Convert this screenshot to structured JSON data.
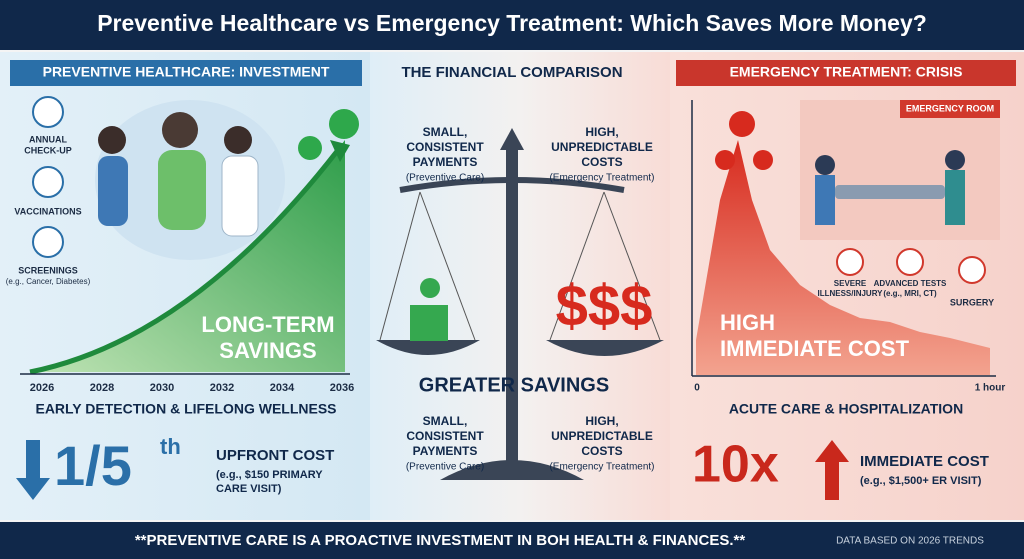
{
  "title": "Preventive Healthcare vs Emergency Treatment: Which Saves More Money?",
  "left": {
    "header": "PREVENTIVE HEALTHCARE: INVESTMENT",
    "icons": [
      {
        "lines": [
          "ANNUAL",
          "CHECK-UP"
        ]
      },
      {
        "lines": [
          "VACCINATIONS"
        ]
      },
      {
        "lines": [
          "SCREENINGS",
          "(e.g., Cancer, Diabetes)"
        ]
      }
    ],
    "chart_label": [
      "LONG-TERM",
      "SAVINGS"
    ],
    "years": [
      2026,
      2028,
      2030,
      2032,
      2034,
      2036
    ],
    "caption": "EARLY DETECTION & LIFELONG WELLNESS",
    "stat": "1/5",
    "stat_suffix": "th",
    "stat_label": "UPFRONT COST",
    "stat_note": [
      "(e.g., $150 PRIMARY",
      "CARE VISIT)"
    ]
  },
  "center": {
    "header": "THE FINANCIAL COMPARISON",
    "left_top": [
      "SMALL,",
      "CONSISTENT",
      "PAYMENTS",
      "(Preventive Care)"
    ],
    "right_top": [
      "HIGH,",
      "UNPREDICTABLE",
      "COSTS",
      "(Emergency Treatment)"
    ],
    "middle": "GREATER SAVINGS",
    "left_bottom": [
      "SMALL,",
      "CONSISTENT",
      "PAYMENTS",
      "(Preventive Care)"
    ],
    "right_bottom": [
      "HIGH,",
      "UNPREDICTABLE",
      "COSTS",
      "(Emergency Treatment)"
    ]
  },
  "right": {
    "header": "EMERGENCY TREATMENT: CRISIS",
    "room_sign": "EMERGENCY ROOM",
    "icons": [
      {
        "lines": [
          "SEVERE",
          "ILLNESS/INJURY"
        ]
      },
      {
        "lines": [
          "ADVANCED TESTS",
          "(e.g., MRI, CT)"
        ]
      },
      {
        "lines": [
          "SURGERY"
        ]
      }
    ],
    "chart_label": [
      "HIGH",
      "IMMEDIATE COST"
    ],
    "axis": [
      0,
      "1 hour"
    ],
    "caption": "ACUTE CARE & HOSPITALIZATION",
    "stat": "10x",
    "stat_label": "IMMEDIATE COST",
    "stat_note": "(e.g., $1,500+ ER VISIT)"
  },
  "footer": {
    "message": "**PREVENTIVE CARE IS A PROACTIVE INVESTMENT IN BOH HEALTH & FINANCES.**",
    "source": "DATA BASED ON 2026 TRENDS"
  }
}
